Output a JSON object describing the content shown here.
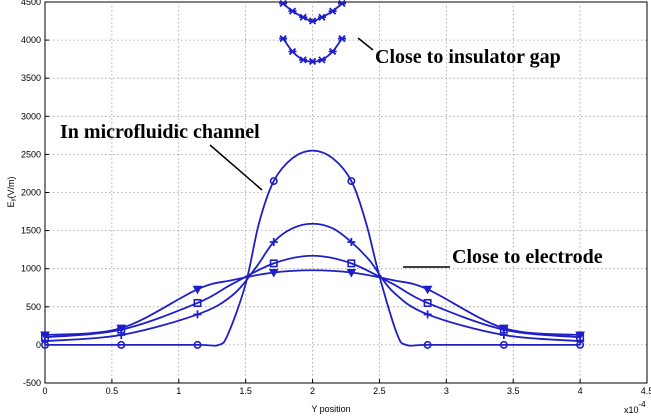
{
  "chart_data": {
    "type": "line",
    "title": "",
    "xlabel": "Y position",
    "ylabel": "Eᵧ(V/m)",
    "x_multiplier": "x10",
    "x_multiplier_exp": "-4",
    "xlim": [
      0,
      4.5
    ],
    "ylim": [
      -500,
      4500
    ],
    "xticks": [
      "0",
      "0.5",
      "1",
      "1.5",
      "2",
      "2.5",
      "3",
      "3.5",
      "4",
      "4.5"
    ],
    "yticks": [
      "-500",
      "0",
      "500",
      "1000",
      "1500",
      "2000",
      "2500",
      "3000",
      "3500",
      "4000",
      "4500"
    ],
    "grid": true,
    "line_color": "#1f1fc8",
    "annotations": [
      {
        "text": "Close to insulator gap"
      },
      {
        "text": "In microfluidic channel"
      },
      {
        "text": "Close to electrode"
      }
    ],
    "series": [
      {
        "marker": "circle",
        "x": [
          0,
          0.57,
          1.14,
          1.3,
          1.37,
          1.5,
          1.6,
          1.71,
          1.85,
          2.0,
          2.15,
          2.29,
          2.4,
          2.5,
          2.63,
          2.7,
          2.86,
          3.43,
          4.0
        ],
        "y": [
          0,
          0,
          0,
          0,
          150,
          800,
          1600,
          2150,
          2450,
          2550,
          2450,
          2150,
          1600,
          900,
          150,
          0,
          0,
          0,
          0
        ]
      },
      {
        "marker": "plus",
        "x": [
          0,
          0.57,
          1.14,
          1.4,
          1.57,
          1.71,
          1.85,
          2.0,
          2.15,
          2.29,
          2.43,
          2.6,
          2.86,
          3.43,
          4.0
        ],
        "y": [
          50,
          130,
          400,
          650,
          1000,
          1350,
          1530,
          1590,
          1530,
          1350,
          1100,
          700,
          400,
          130,
          50
        ]
      },
      {
        "marker": "square",
        "x": [
          0,
          0.57,
          1.14,
          1.4,
          1.71,
          2.0,
          2.29,
          2.6,
          2.86,
          3.43,
          4.0
        ],
        "y": [
          100,
          200,
          550,
          800,
          1070,
          1170,
          1070,
          800,
          550,
          200,
          100
        ]
      },
      {
        "marker": "triangle",
        "x": [
          0,
          0.57,
          1.14,
          1.4,
          1.71,
          2.0,
          2.29,
          2.6,
          2.86,
          3.43,
          4.0
        ],
        "y": [
          130,
          220,
          730,
          850,
          950,
          980,
          950,
          850,
          730,
          220,
          130
        ]
      },
      {
        "marker": "asterisk",
        "x": [
          1.78,
          1.85,
          1.93,
          2.0,
          2.07,
          2.15,
          2.22
        ],
        "y": [
          4020,
          3850,
          3740,
          3720,
          3740,
          3850,
          4020
        ]
      },
      {
        "marker": "asterisk",
        "x": [
          1.78,
          1.85,
          1.93,
          2.0,
          2.07,
          2.15,
          2.22
        ],
        "y": [
          4480,
          4380,
          4300,
          4250,
          4300,
          4380,
          4480
        ]
      }
    ]
  }
}
